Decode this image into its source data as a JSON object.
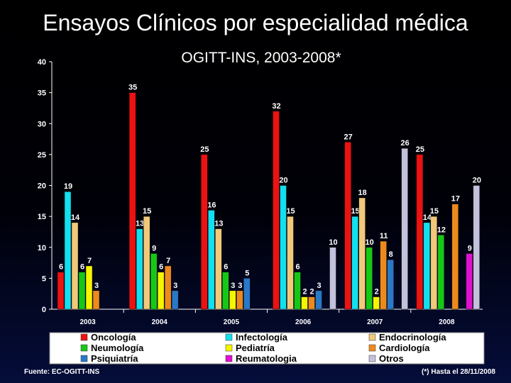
{
  "page_title": "Ensayos Clínicos por especialidad médica",
  "footer": {
    "source": "Fuente: EC-OGITT-INS",
    "note": "(*) Hasta el 28/11/2008"
  },
  "colors": {
    "background": "#000000",
    "axis": "#ffffff",
    "legend_bg": "#ffffff",
    "legend_text": "#000000"
  },
  "chart_data": {
    "type": "bar",
    "title": "OGITT-INS, 2003-2008*",
    "xlabel": "",
    "ylabel": "",
    "ylim": [
      0,
      40
    ],
    "yticks": [
      0,
      5,
      10,
      15,
      20,
      25,
      30,
      35,
      40
    ],
    "categories": [
      "2003",
      "2004",
      "2005",
      "2006",
      "2007",
      "2008"
    ],
    "legend_position": "bottom",
    "series": [
      {
        "name": "Oncología",
        "color": "#ee1111",
        "values": [
          6,
          35,
          25,
          32,
          27,
          25
        ]
      },
      {
        "name": "Infectología",
        "color": "#11e0f0",
        "values": [
          19,
          13,
          16,
          20,
          15,
          14
        ]
      },
      {
        "name": "Endocrinología",
        "color": "#f2c97a",
        "values": [
          14,
          15,
          13,
          15,
          18,
          15
        ]
      },
      {
        "name": "Neumología",
        "color": "#16c816",
        "values": [
          6,
          9,
          6,
          6,
          10,
          12
        ]
      },
      {
        "name": "Pediatría",
        "color": "#f5f500",
        "values": [
          7,
          6,
          3,
          2,
          2,
          0
        ]
      },
      {
        "name": "Cardiología",
        "color": "#ee8a1c",
        "values": [
          3,
          7,
          3,
          2,
          11,
          17
        ]
      },
      {
        "name": "Psiquiatría",
        "color": "#2a78c8",
        "values": [
          0,
          3,
          5,
          3,
          8,
          0
        ]
      },
      {
        "name": "Reumatologia",
        "color": "#e010d0",
        "values": [
          0,
          0,
          0,
          0,
          0,
          9
        ]
      },
      {
        "name": "Otros",
        "color": "#c2c2dc",
        "values": [
          0,
          0,
          0,
          10,
          26,
          20
        ]
      }
    ]
  }
}
